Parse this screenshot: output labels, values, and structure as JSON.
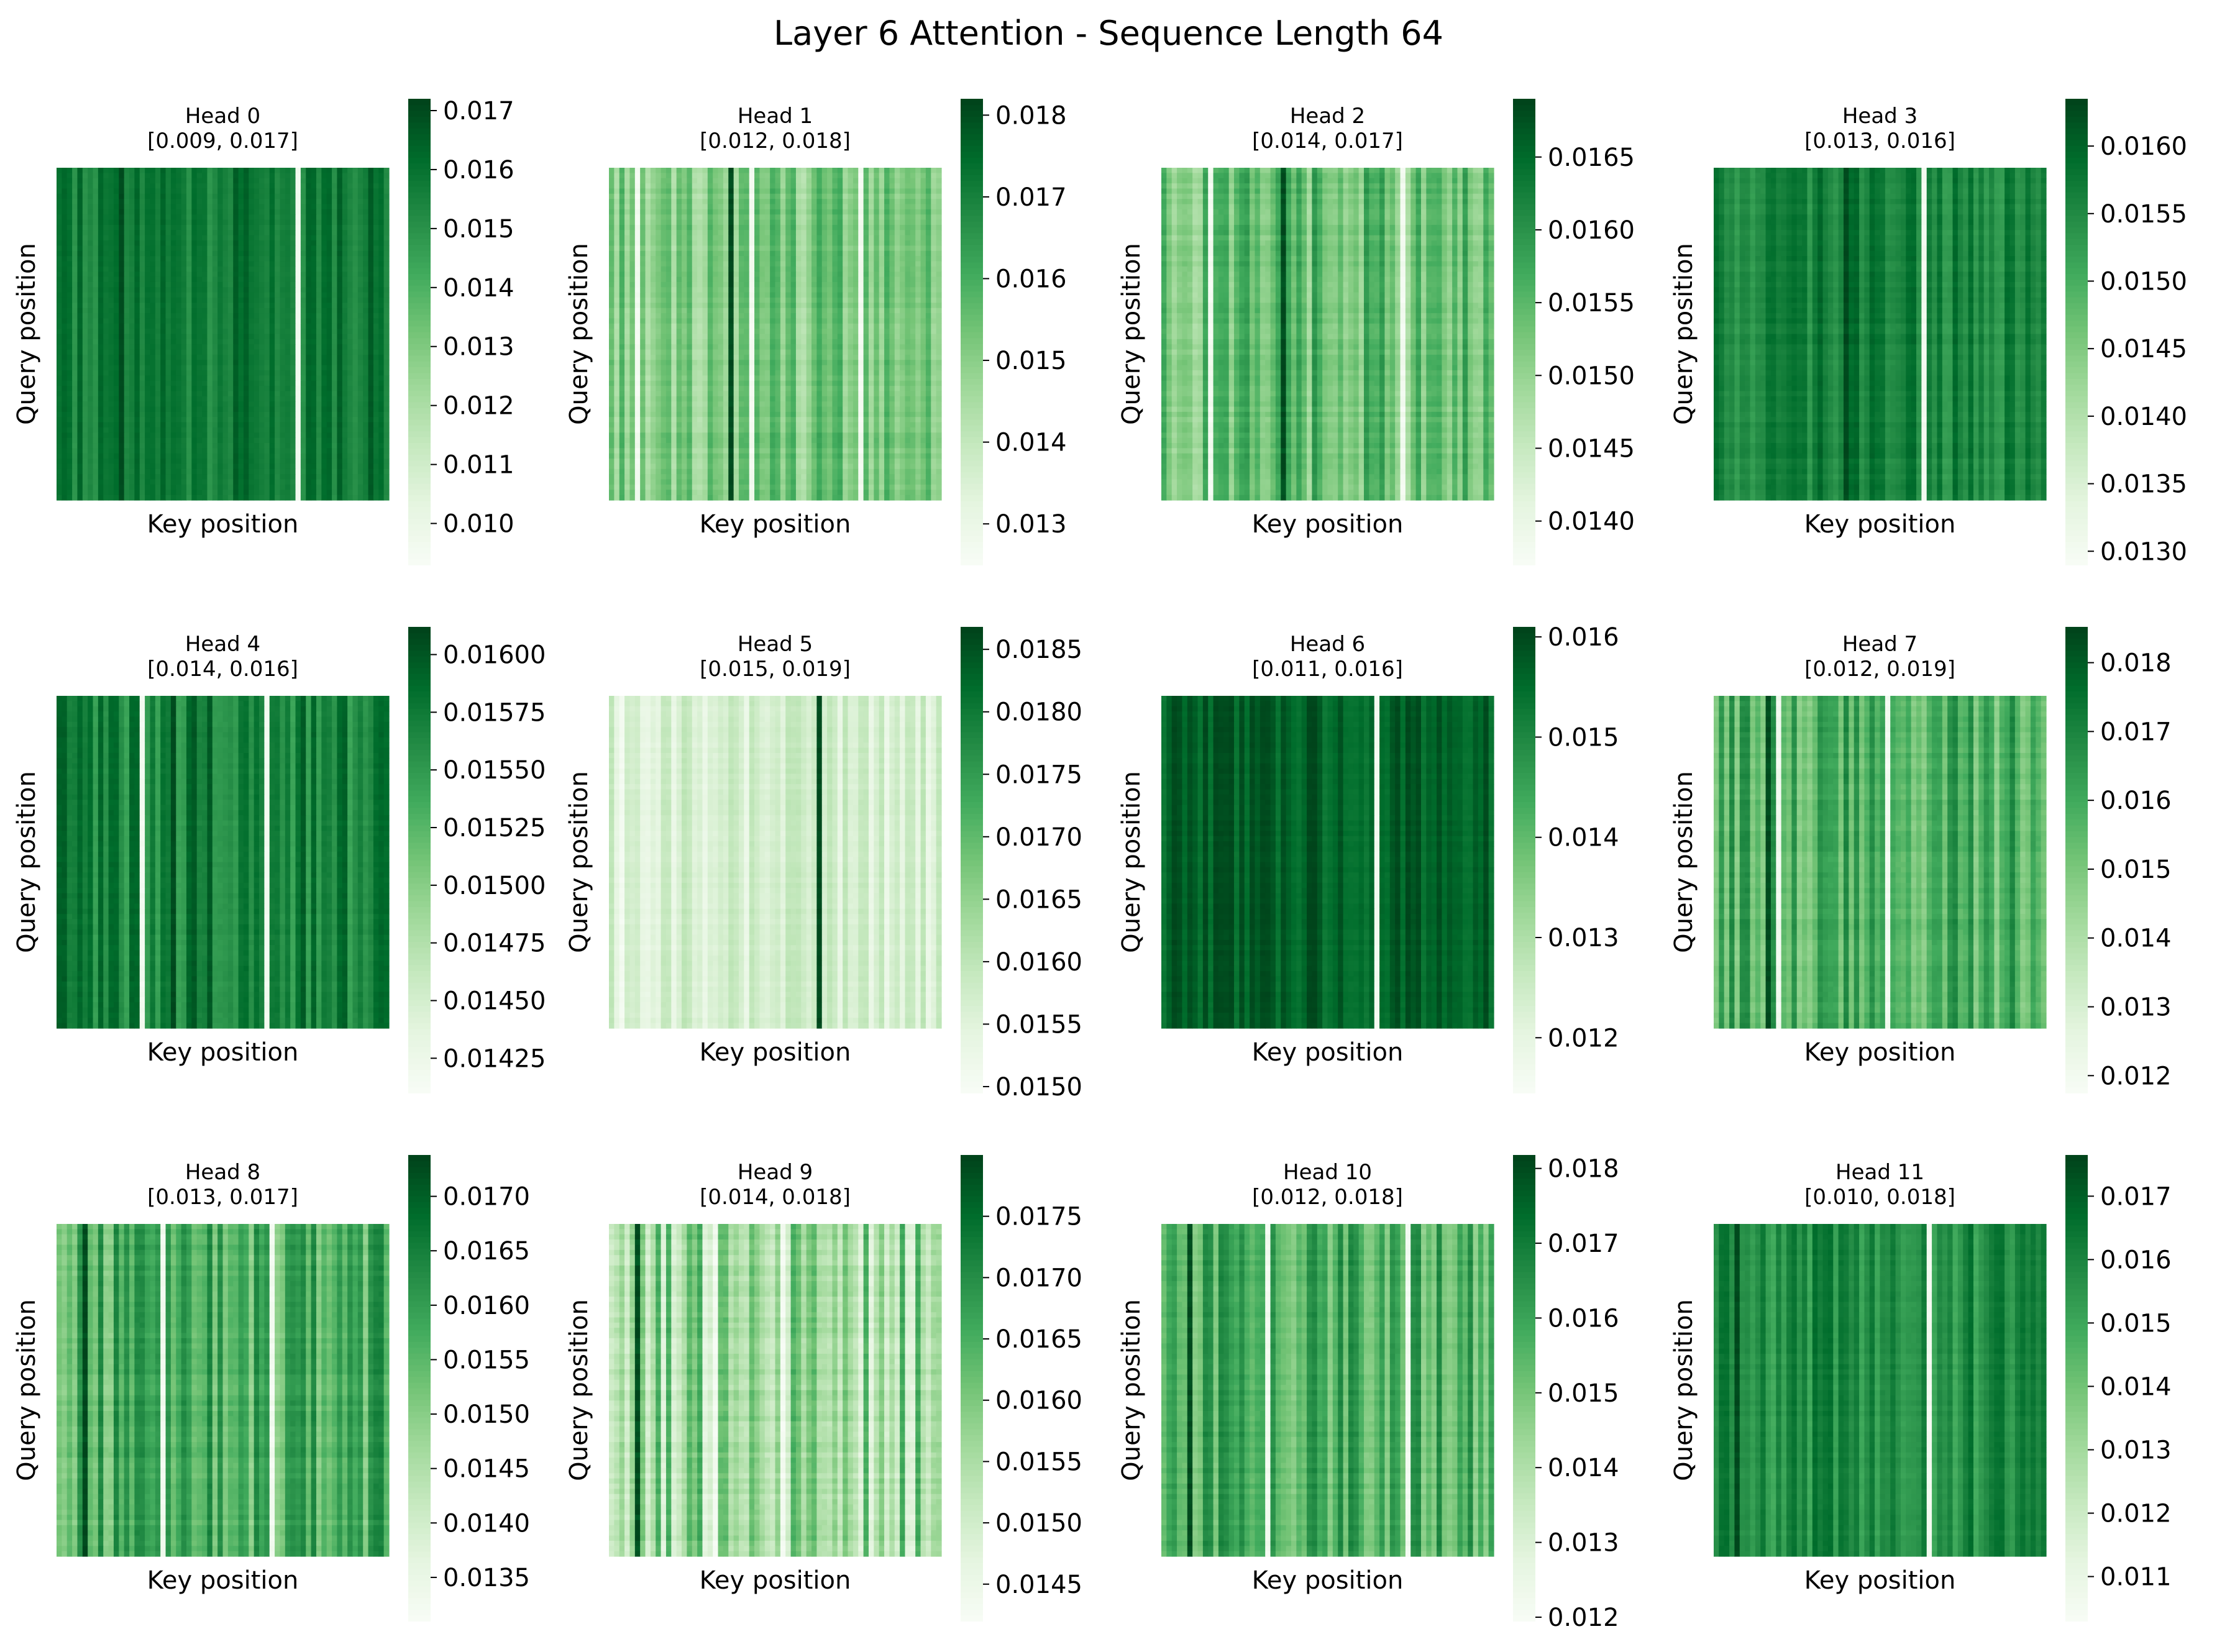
{
  "figure": {
    "title": "Layer 6 Attention - Sequence Length 64",
    "colormap": "Greens",
    "colormap_stops": [
      "#f7fcf5",
      "#e5f5e0",
      "#c7e9c0",
      "#a1d99b",
      "#74c476",
      "#41ab5d",
      "#238b45",
      "#006d2c",
      "#00441b"
    ]
  },
  "chart_data": [
    {
      "type": "heatmap",
      "title": "Head 0",
      "subtitle": "[0.009, 0.017]",
      "xlabel": "Key position",
      "ylabel": "Query position",
      "vmin": 0.0093,
      "vmax": 0.0172,
      "colorbar_ticks": [
        "0.010",
        "0.011",
        "0.012",
        "0.013",
        "0.014",
        "0.015",
        "0.016",
        "0.017"
      ],
      "data_mean": 0.0158,
      "data_spread": 0.0009,
      "min_col": [
        46
      ],
      "max_col": 12,
      "row_modulation": 0.1
    },
    {
      "type": "heatmap",
      "title": "Head 1",
      "subtitle": "[0.012, 0.018]",
      "xlabel": "Key position",
      "ylabel": "Query position",
      "vmin": 0.0125,
      "vmax": 0.0182,
      "colorbar_ticks": [
        "0.013",
        "0.014",
        "0.015",
        "0.016",
        "0.017",
        "0.018"
      ],
      "data_mean": 0.0152,
      "data_spread": 0.0009,
      "min_col": [
        5,
        27,
        48
      ],
      "max_col": 23,
      "row_modulation": 0.35
    },
    {
      "type": "heatmap",
      "title": "Head 2",
      "subtitle": "[0.014, 0.017]",
      "xlabel": "Key position",
      "ylabel": "Query position",
      "vmin": 0.0137,
      "vmax": 0.0169,
      "colorbar_ticks": [
        "0.0140",
        "0.0145",
        "0.0150",
        "0.0155",
        "0.0160",
        "0.0165"
      ],
      "data_mean": 0.0154,
      "data_spread": 0.0006,
      "min_col": [
        9,
        46
      ],
      "max_col": 23,
      "row_modulation": 0.3
    },
    {
      "type": "heatmap",
      "title": "Head 3",
      "subtitle": "[0.013, 0.016]",
      "xlabel": "Key position",
      "ylabel": "Query position",
      "vmin": 0.0129,
      "vmax": 0.01635,
      "colorbar_ticks": [
        "0.0130",
        "0.0135",
        "0.0140",
        "0.0145",
        "0.0150",
        "0.0155",
        "0.0160"
      ],
      "data_mean": 0.0156,
      "data_spread": 0.0004,
      "min_col": [
        40
      ],
      "max_col": 25,
      "row_modulation": 0.35
    },
    {
      "type": "heatmap",
      "title": "Head 4",
      "subtitle": "[0.014, 0.016]",
      "xlabel": "Key position",
      "ylabel": "Query position",
      "vmin": 0.0141,
      "vmax": 0.01612,
      "colorbar_ticks": [
        "0.01425",
        "0.01450",
        "0.01475",
        "0.01500",
        "0.01525",
        "0.01550",
        "0.01575",
        "0.01600"
      ],
      "data_mean": 0.0157,
      "data_spread": 0.0003,
      "min_col": [
        16,
        40
      ],
      "max_col": 22,
      "row_modulation": 0.15
    },
    {
      "type": "heatmap",
      "title": "Head 5",
      "subtitle": "[0.015, 0.019]",
      "xlabel": "Key position",
      "ylabel": "Query position",
      "vmin": 0.01495,
      "vmax": 0.01868,
      "colorbar_ticks": [
        "0.0150",
        "0.0155",
        "0.0160",
        "0.0165",
        "0.0170",
        "0.0175",
        "0.0180",
        "0.0185"
      ],
      "data_mean": 0.0156,
      "data_spread": 0.0004,
      "min_col": [
        2
      ],
      "max_col": 40,
      "row_modulation": 0.3
    },
    {
      "type": "heatmap",
      "title": "Head 6",
      "subtitle": "[0.011, 0.016]",
      "xlabel": "Key position",
      "ylabel": "Query position",
      "vmin": 0.01145,
      "vmax": 0.0161,
      "colorbar_ticks": [
        "0.012",
        "0.013",
        "0.014",
        "0.015",
        "0.016"
      ],
      "data_mean": 0.0157,
      "data_spread": 0.0004,
      "min_col": [
        41
      ],
      "max_col": 20,
      "row_modulation": 0.25
    },
    {
      "type": "heatmap",
      "title": "Head 7",
      "subtitle": "[0.012, 0.019]",
      "xlabel": "Key position",
      "ylabel": "Query position",
      "vmin": 0.01175,
      "vmax": 0.01852,
      "colorbar_ticks": [
        "0.012",
        "0.013",
        "0.014",
        "0.015",
        "0.016",
        "0.017",
        "0.018"
      ],
      "data_mean": 0.0158,
      "data_spread": 0.0012,
      "min_col": [
        12,
        33
      ],
      "max_col": 10,
      "row_modulation": 0.3
    },
    {
      "type": "heatmap",
      "title": "Head 8",
      "subtitle": "[0.013, 0.017]",
      "xlabel": "Key position",
      "ylabel": "Query position",
      "vmin": 0.0131,
      "vmax": 0.01738,
      "colorbar_ticks": [
        "0.0135",
        "0.0140",
        "0.0145",
        "0.0150",
        "0.0155",
        "0.0160",
        "0.0165",
        "0.0170"
      ],
      "data_mean": 0.0157,
      "data_spread": 0.0008,
      "min_col": [
        20,
        41
      ],
      "max_col": 5,
      "row_modulation": 0.35
    },
    {
      "type": "heatmap",
      "title": "Head 9",
      "subtitle": "[0.014, 0.018]",
      "xlabel": "Key position",
      "ylabel": "Query position",
      "vmin": 0.0142,
      "vmax": 0.018,
      "colorbar_ticks": [
        "0.0145",
        "0.0150",
        "0.0155",
        "0.0160",
        "0.0165",
        "0.0170",
        "0.0175"
      ],
      "data_mean": 0.0156,
      "data_spread": 0.001,
      "min_col": [
        20,
        33
      ],
      "max_col": 5,
      "row_modulation": 0.3
    },
    {
      "type": "heatmap",
      "title": "Head 10",
      "subtitle": "[0.012, 0.018]",
      "xlabel": "Key position",
      "ylabel": "Query position",
      "vmin": 0.01195,
      "vmax": 0.01818,
      "colorbar_ticks": [
        "0.012",
        "0.013",
        "0.014",
        "0.015",
        "0.016",
        "0.017",
        "0.018"
      ],
      "data_mean": 0.0157,
      "data_spread": 0.0011,
      "min_col": [
        20,
        47
      ],
      "max_col": 5,
      "row_modulation": 0.3
    },
    {
      "type": "heatmap",
      "title": "Head 11",
      "subtitle": "[0.010, 0.018]",
      "xlabel": "Key position",
      "ylabel": "Query position",
      "vmin": 0.0103,
      "vmax": 0.01765,
      "colorbar_ticks": [
        "0.011",
        "0.012",
        "0.013",
        "0.014",
        "0.015",
        "0.016",
        "0.017"
      ],
      "data_mean": 0.0158,
      "data_spread": 0.0009,
      "min_col": [
        41
      ],
      "max_col": 4,
      "row_modulation": 0.25
    }
  ]
}
